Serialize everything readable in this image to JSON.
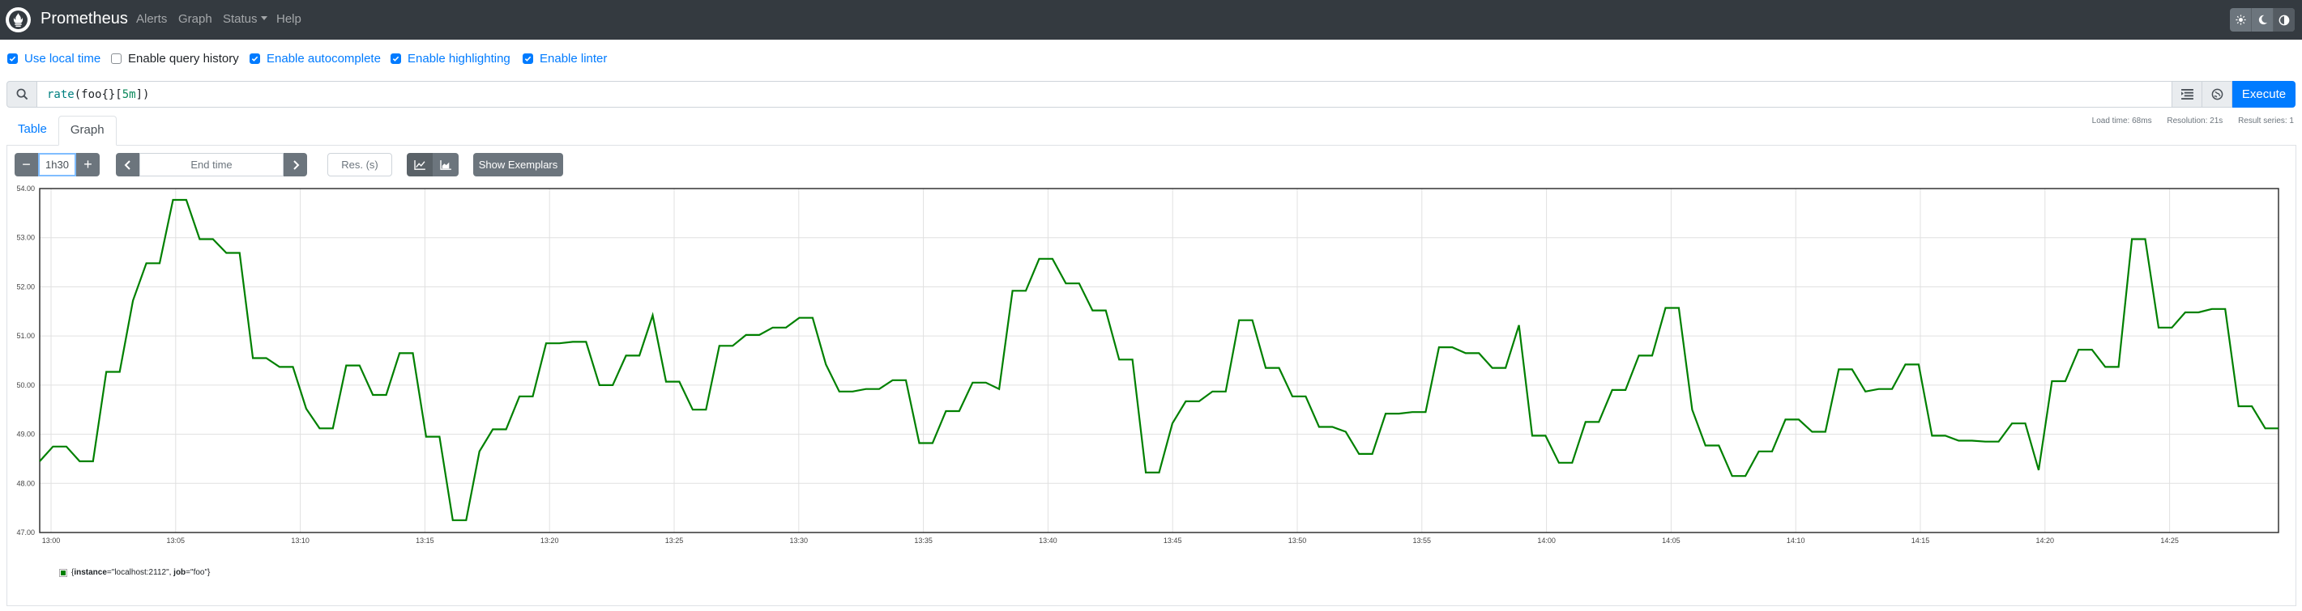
{
  "navbar": {
    "brand": "Prometheus",
    "links": [
      "Alerts",
      "Graph",
      "Status",
      "Help"
    ],
    "theme_icons": [
      "light-theme-icon",
      "dark-theme-icon",
      "auto-theme-icon"
    ]
  },
  "options": [
    {
      "label": "Use local time",
      "checked": true
    },
    {
      "label": "Enable query history",
      "checked": false
    },
    {
      "label": "Enable autocomplete",
      "checked": true
    },
    {
      "label": "Enable highlighting",
      "checked": true
    },
    {
      "label": "Enable linter",
      "checked": true
    }
  ],
  "expression": {
    "fn": "rate",
    "open": "(",
    "metric": "foo{}[",
    "duration": "5m",
    "close": "])",
    "execute_label": "Execute"
  },
  "stats": {
    "load_time": "Load time: 68ms",
    "resolution": "Resolution: 21s",
    "result_series": "Result series: 1"
  },
  "tabs": {
    "table": "Table",
    "graph": "Graph"
  },
  "controls": {
    "range": "1h30",
    "minus": "−",
    "plus": "+",
    "end_time_placeholder": "End time",
    "resolution_placeholder": "Res. (s)",
    "exemplars_label": "Show Exemplars"
  },
  "colors": {
    "series": "#008000",
    "accent": "#007bff",
    "navbar": "#343a40"
  },
  "chart_data": {
    "type": "line",
    "ylim": [
      47.0,
      54.0
    ],
    "yticks": [
      "47.00",
      "48.00",
      "49.00",
      "50.00",
      "51.00",
      "52.00",
      "53.00",
      "54.00"
    ],
    "xticks": [
      "13:00",
      "13:05",
      "13:10",
      "13:15",
      "13:20",
      "13:25",
      "13:30",
      "13:35",
      "13:40",
      "13:45",
      "13:50",
      "13:55",
      "14:00",
      "14:05",
      "14:10",
      "14:15",
      "14:20",
      "14:25"
    ],
    "x_start_minute": 0,
    "x_end_minute": 90,
    "grid": true,
    "legend_placement": "bottom-left",
    "series": [
      {
        "label_instance": "localhost:2112",
        "label_job": "foo",
        "values": [
          48.45,
          48.75,
          48.75,
          48.45,
          48.45,
          50.27,
          50.27,
          51.72,
          52.48,
          52.48,
          53.77,
          53.77,
          52.97,
          52.97,
          52.69,
          52.69,
          50.55,
          50.55,
          50.37,
          50.37,
          49.52,
          49.12,
          49.12,
          50.4,
          50.4,
          49.8,
          49.8,
          50.65,
          50.65,
          48.95,
          48.95,
          47.25,
          47.25,
          48.65,
          49.1,
          49.1,
          49.77,
          49.77,
          50.85,
          50.85,
          50.88,
          50.88,
          50.0,
          50.0,
          50.6,
          50.6,
          51.42,
          50.07,
          50.07,
          49.5,
          49.5,
          50.8,
          50.8,
          51.02,
          51.02,
          51.17,
          51.17,
          51.37,
          51.37,
          50.42,
          49.87,
          49.87,
          49.92,
          49.92,
          50.1,
          50.1,
          48.82,
          48.82,
          49.47,
          49.47,
          50.05,
          50.05,
          49.92,
          51.92,
          51.92,
          52.57,
          52.57,
          52.07,
          52.07,
          51.52,
          51.52,
          50.52,
          50.52,
          48.22,
          48.22,
          49.22,
          49.67,
          49.67,
          49.87,
          49.87,
          51.32,
          51.32,
          50.35,
          50.35,
          49.77,
          49.77,
          49.15,
          49.15,
          49.05,
          48.6,
          48.6,
          49.42,
          49.42,
          49.45,
          49.45,
          50.77,
          50.77,
          50.65,
          50.65,
          50.35,
          50.35,
          51.22,
          48.97,
          48.97,
          48.42,
          48.42,
          49.25,
          49.25,
          49.9,
          49.9,
          50.6,
          50.6,
          51.57,
          51.57,
          49.5,
          48.77,
          48.77,
          48.15,
          48.15,
          48.65,
          48.65,
          49.3,
          49.3,
          49.05,
          49.05,
          50.32,
          50.32,
          49.87,
          49.92,
          49.92,
          50.42,
          50.42,
          48.97,
          48.97,
          48.87,
          48.87,
          48.85,
          48.85,
          49.22,
          49.22,
          48.27,
          50.08,
          50.08,
          50.72,
          50.72,
          50.37,
          50.37,
          52.97,
          52.97,
          51.17,
          51.17,
          51.48,
          51.48,
          51.55,
          51.55,
          49.57,
          49.57,
          49.12,
          49.12
        ]
      }
    ]
  }
}
